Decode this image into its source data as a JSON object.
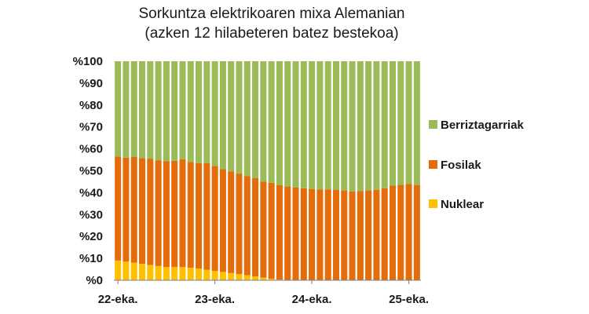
{
  "chart_data": {
    "type": "bar",
    "stacked": true,
    "title": [
      "Sorkuntza elektrikoaren mixa Alemanian",
      "(azken 12 hilabeteren batez bestekoa)"
    ],
    "xlabel": "",
    "ylabel": "",
    "ylim": [
      0,
      100
    ],
    "y_ticks": [
      "%0",
      "%10",
      "%20",
      "%30",
      "%40",
      "%50",
      "%60",
      "%70",
      "%80",
      "%90",
      "%100"
    ],
    "x_tick_labels": [
      {
        "label": "22-eka.",
        "index": 0
      },
      {
        "label": "23-eka.",
        "index": 12
      },
      {
        "label": "24-eka.",
        "index": 24
      },
      {
        "label": "25-eka.",
        "index": 36
      }
    ],
    "grid": false,
    "legend_position": "right",
    "series": [
      {
        "name": "Nuklear",
        "color": "#ffc000",
        "values": [
          9,
          8.5,
          8,
          7.5,
          7,
          6.5,
          6,
          6,
          6,
          5.7,
          5.3,
          4.8,
          4.3,
          3.8,
          3.3,
          2.8,
          2.3,
          1.8,
          1.2,
          0.7,
          0.3,
          0,
          0,
          0,
          0,
          0,
          0,
          0,
          0,
          0,
          0,
          0,
          0,
          0,
          0,
          0,
          0,
          0
        ]
      },
      {
        "name": "Fosilak",
        "color": "#e46c0a",
        "values": [
          47.5,
          47.5,
          48.3,
          48.3,
          48.5,
          48.3,
          48.3,
          48.5,
          49.3,
          48.3,
          48.2,
          48.7,
          47.9,
          46.9,
          46.4,
          45.9,
          45.2,
          44.9,
          43.8,
          43.8,
          43.2,
          42.8,
          42.3,
          42,
          41.7,
          41.5,
          41.5,
          41.2,
          41,
          40.6,
          40.8,
          41,
          41.3,
          42,
          43.2,
          43.6,
          44,
          43.5
        ]
      },
      {
        "name": "Berriztagarriak",
        "color": "#9bbb59",
        "values": [
          43.5,
          44,
          43.7,
          44.2,
          44.5,
          45.2,
          45.7,
          45.5,
          44.7,
          46,
          46.5,
          46.5,
          47.8,
          49.3,
          50.3,
          51.3,
          52.5,
          53.3,
          55,
          55.5,
          56.5,
          57.2,
          57.7,
          58,
          58.3,
          58.5,
          58.5,
          58.8,
          59,
          59.4,
          59.2,
          59,
          58.7,
          58,
          56.8,
          56.4,
          56,
          56.5
        ]
      }
    ]
  }
}
